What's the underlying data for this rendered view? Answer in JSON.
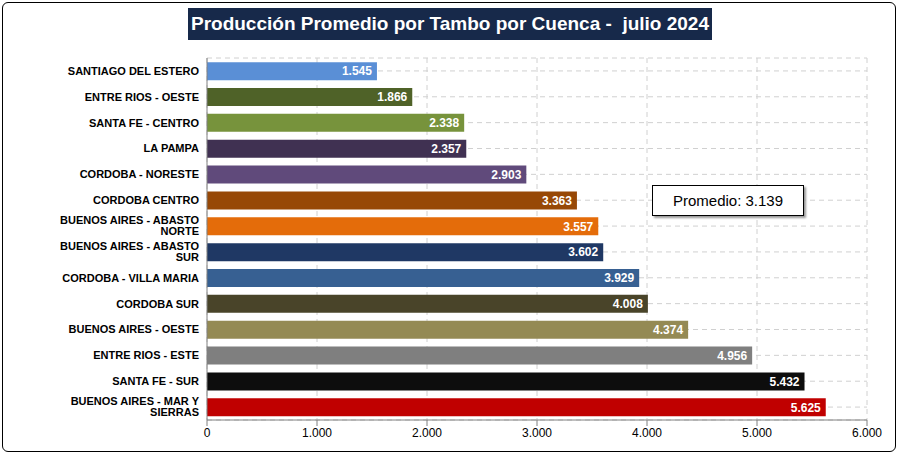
{
  "chart_data": {
    "type": "bar",
    "title": "Producción Promedio por Tambo por Cuenca -  julio 2024",
    "orientation": "horizontal",
    "categories": [
      "SANTIAGO DEL ESTERO",
      "ENTRE RIOS - OESTE",
      "SANTA FE - CENTRO",
      "LA PAMPA",
      "CORDOBA - NORESTE",
      "CORDOBA CENTRO",
      "BUENOS AIRES - ABASTO NORTE",
      "BUENOS AIRES - ABASTO SUR",
      "CORDOBA - VILLA MARIA",
      "CORDOBA SUR",
      "BUENOS AIRES - OESTE",
      "ENTRE RIOS - ESTE",
      "SANTA FE - SUR",
      "BUENOS AIRES - MAR Y SIERRAS"
    ],
    "values": [
      1545,
      1866,
      2338,
      2357,
      2903,
      3363,
      3557,
      3602,
      3929,
      4008,
      4374,
      4956,
      5432,
      5625
    ],
    "value_labels": [
      "1.545",
      "1.866",
      "2.338",
      "2.357",
      "2.903",
      "3.363",
      "3.557",
      "3.602",
      "3.929",
      "4.008",
      "4.374",
      "4.956",
      "5.432",
      "5.625"
    ],
    "colors": [
      "#5a8fd6",
      "#4f6228",
      "#77933c",
      "#403152",
      "#604a7b",
      "#974806",
      "#e46c0a",
      "#1f3864",
      "#376092",
      "#494429",
      "#948a54",
      "#7f7f7f",
      "#0d0d0d",
      "#c00000"
    ],
    "xlim": [
      0,
      6000
    ],
    "xticks": [
      0,
      {
        "value": 1000,
        "label": "1.000"
      },
      {
        "value": 2000,
        "label": "2.000"
      },
      {
        "value": 3000,
        "label": "3.000"
      },
      {
        "value": 4000,
        "label": "4.000"
      },
      {
        "value": 5000,
        "label": "5.000"
      },
      {
        "value": 6000,
        "label": "6.000"
      }
    ],
    "grid": true,
    "data_labels": true,
    "annotations": [
      "Promedio: 3.139"
    ]
  }
}
